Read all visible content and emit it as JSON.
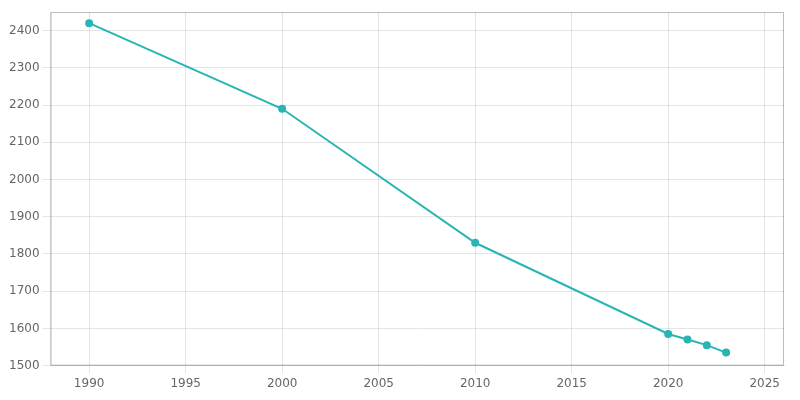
{
  "chart_data": {
    "type": "line",
    "x": [
      1990,
      2000,
      2010,
      2020,
      2021,
      2022,
      2023
    ],
    "values": [
      2420,
      2190,
      1830,
      1585,
      1570,
      1555,
      1535
    ],
    "color": "#2ab5b5",
    "marker": "circle",
    "xlim": [
      1988,
      2026
    ],
    "ylim": [
      1500,
      2450
    ],
    "xticks": [
      1990,
      1995,
      2000,
      2005,
      2010,
      2015,
      2020,
      2025
    ],
    "yticks": [
      1500,
      1600,
      1700,
      1800,
      1900,
      2000,
      2100,
      2200,
      2300,
      2400
    ],
    "grid": true
  }
}
